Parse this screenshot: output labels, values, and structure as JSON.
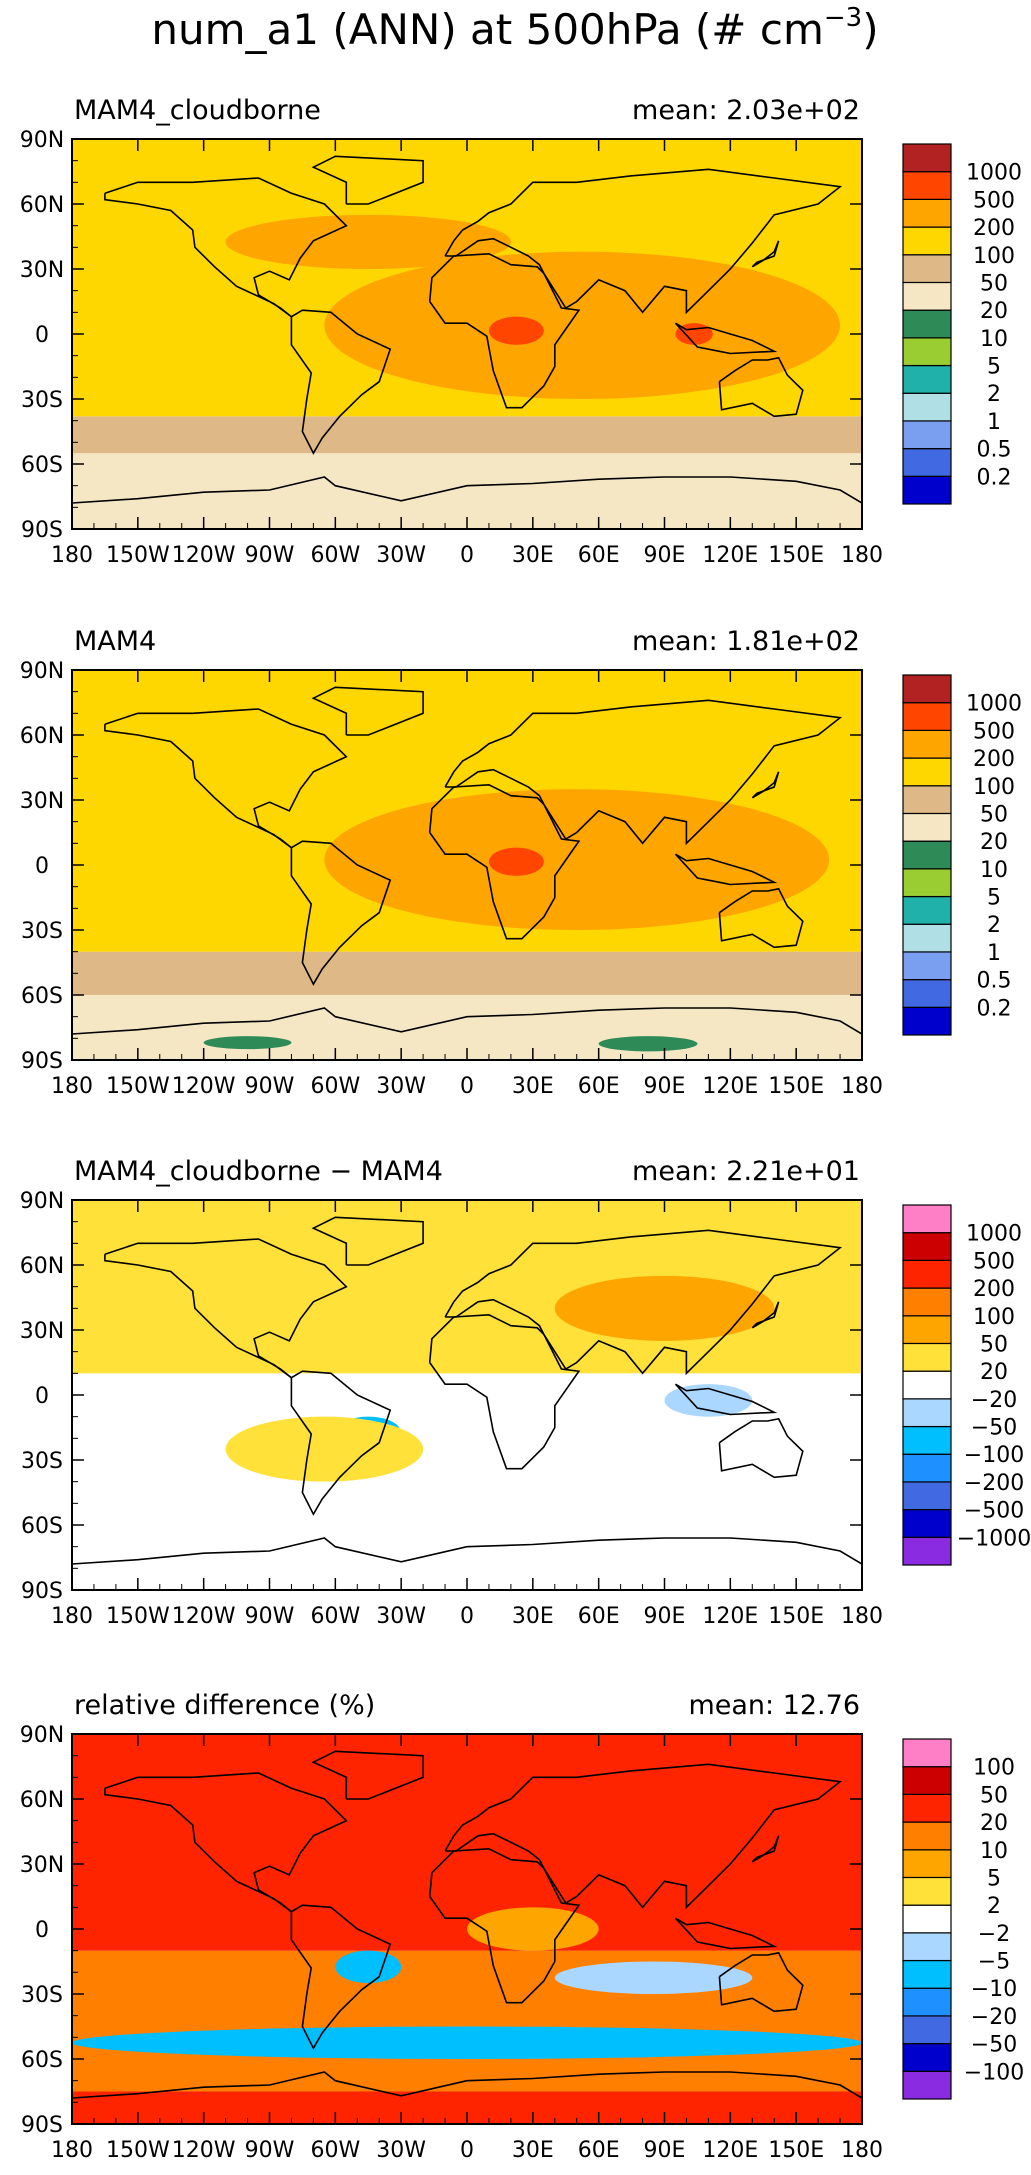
{
  "figure": {
    "title_main": "num_a1 (ANN) at 500hPa (# cm",
    "title_exp": "−3",
    "title_close": ")"
  },
  "colors": {
    "abs_scale": [
      "#0000cd",
      "#4169e1",
      "#7b9ff0",
      "#b0e0e6",
      "#20b2aa",
      "#9acd32",
      "#2e8b57",
      "#f5e6c4",
      "#deb887",
      "#ffd700",
      "#ffa500",
      "#ff4500",
      "#b22222"
    ],
    "diff_scale": [
      "#8a2be2",
      "#0000cd",
      "#4169e1",
      "#1e90ff",
      "#00bfff",
      "#aad7ff",
      "#ffffff",
      "#ffe13a",
      "#ffa500",
      "#ff7f00",
      "#ff2400",
      "#cc0000",
      "#ff7fc7"
    ],
    "land_line": "#000000"
  },
  "chart_data": [
    {
      "type": "heatmap",
      "title": "MAM4_cloudborne",
      "mean_label": "mean: 2.03e+02",
      "xlabels": [
        "180",
        "150W",
        "120W",
        "90W",
        "60W",
        "30W",
        "0",
        "30E",
        "60E",
        "90E",
        "120E",
        "150E",
        "180"
      ],
      "ylabels": [
        "90N",
        "60N",
        "30N",
        "0",
        "30S",
        "60S",
        "90S"
      ],
      "xlim": [
        -180,
        180
      ],
      "ylim": [
        -90,
        90
      ],
      "colorbar": {
        "levels": [
          "0.2",
          "0.5",
          "1",
          "2",
          "5",
          "10",
          "20",
          "50",
          "100",
          "200",
          "500",
          "1000"
        ],
        "palette": "abs_scale"
      },
      "bands": [
        {
          "lat": [
            -90,
            -55
          ],
          "color_index": 7
        },
        {
          "lat": [
            -55,
            -38
          ],
          "color_index": 8
        },
        {
          "lat": [
            -38,
            90
          ],
          "color_index": 9
        }
      ],
      "regions": [
        {
          "lon": [
            -65,
            170
          ],
          "lat": [
            -30,
            38
          ],
          "color_index": 10
        },
        {
          "lon": [
            -110,
            20
          ],
          "lat": [
            30,
            55
          ],
          "color_index": 10
        },
        {
          "lon": [
            10,
            35
          ],
          "lat": [
            -5,
            8
          ],
          "color_index": 11
        },
        {
          "lon": [
            95,
            112
          ],
          "lat": [
            -5,
            5
          ],
          "color_index": 11
        }
      ]
    },
    {
      "type": "heatmap",
      "title": "MAM4",
      "mean_label": "mean: 1.81e+02",
      "xlabels": [
        "180",
        "150W",
        "120W",
        "90W",
        "60W",
        "30W",
        "0",
        "30E",
        "60E",
        "90E",
        "120E",
        "150E",
        "180"
      ],
      "ylabels": [
        "90N",
        "60N",
        "30N",
        "0",
        "30S",
        "60S",
        "90S"
      ],
      "xlim": [
        -180,
        180
      ],
      "ylim": [
        -90,
        90
      ],
      "colorbar": {
        "levels": [
          "0.2",
          "0.5",
          "1",
          "2",
          "5",
          "10",
          "20",
          "50",
          "100",
          "200",
          "500",
          "1000"
        ],
        "palette": "abs_scale"
      },
      "bands": [
        {
          "lat": [
            -90,
            -60
          ],
          "color_index": 7
        },
        {
          "lat": [
            -60,
            -40
          ],
          "color_index": 8
        },
        {
          "lat": [
            -40,
            90
          ],
          "color_index": 9
        }
      ],
      "regions": [
        {
          "lon": [
            -65,
            165
          ],
          "lat": [
            -30,
            35
          ],
          "color_index": 10
        },
        {
          "lon": [
            -120,
            -80
          ],
          "lat": [
            -85,
            -79
          ],
          "color_index": 6
        },
        {
          "lon": [
            60,
            105
          ],
          "lat": [
            -86,
            -79
          ],
          "color_index": 6
        },
        {
          "lon": [
            10,
            35
          ],
          "lat": [
            -5,
            8
          ],
          "color_index": 11
        }
      ]
    },
    {
      "type": "heatmap",
      "title": "MAM4_cloudborne − MAM4",
      "mean_label": "mean: 2.21e+01",
      "xlabels": [
        "180",
        "150W",
        "120W",
        "90W",
        "60W",
        "30W",
        "0",
        "30E",
        "60E",
        "90E",
        "120E",
        "150E",
        "180"
      ],
      "ylabels": [
        "90N",
        "60N",
        "30N",
        "0",
        "30S",
        "60S",
        "90S"
      ],
      "xlim": [
        -180,
        180
      ],
      "ylim": [
        -90,
        90
      ],
      "colorbar": {
        "levels": [
          "−1000",
          "−500",
          "−200",
          "−100",
          "−50",
          "−20",
          "20",
          "50",
          "100",
          "200",
          "500",
          "1000"
        ],
        "palette": "diff_scale"
      },
      "bands": [
        {
          "lat": [
            -90,
            -40
          ],
          "color_index": 6
        },
        {
          "lat": [
            -40,
            10
          ],
          "color_index": 6
        },
        {
          "lat": [
            10,
            90
          ],
          "color_index": 7
        }
      ],
      "regions": [
        {
          "lon": [
            40,
            140
          ],
          "lat": [
            25,
            55
          ],
          "color_index": 8
        },
        {
          "lon": [
            -60,
            -30
          ],
          "lat": [
            -25,
            -10
          ],
          "color_index": 4
        },
        {
          "lon": [
            90,
            130
          ],
          "lat": [
            -10,
            5
          ],
          "color_index": 5
        },
        {
          "lon": [
            -110,
            -20
          ],
          "lat": [
            -40,
            -10
          ],
          "color_index": 7
        }
      ]
    },
    {
      "type": "heatmap",
      "title": "relative difference (%)",
      "mean_label": "mean: 12.76",
      "xlabels": [
        "180",
        "150W",
        "120W",
        "90W",
        "60W",
        "30W",
        "0",
        "30E",
        "60E",
        "90E",
        "120E",
        "150E",
        "180"
      ],
      "ylabels": [
        "90N",
        "60N",
        "30N",
        "0",
        "30S",
        "60S",
        "90S"
      ],
      "xlim": [
        -180,
        180
      ],
      "ylim": [
        -90,
        90
      ],
      "colorbar": {
        "levels": [
          "−100",
          "−50",
          "−20",
          "−10",
          "−5",
          "−2",
          "2",
          "5",
          "10",
          "20",
          "50",
          "100"
        ],
        "palette": "diff_scale"
      },
      "bands": [
        {
          "lat": [
            -90,
            -75
          ],
          "color_index": 10
        },
        {
          "lat": [
            -75,
            -10
          ],
          "color_index": 9
        },
        {
          "lat": [
            -10,
            90
          ],
          "color_index": 10
        }
      ],
      "regions": [
        {
          "lon": [
            -180,
            180
          ],
          "lat": [
            -60,
            -45
          ],
          "color_index": 4
        },
        {
          "lon": [
            -60,
            -30
          ],
          "lat": [
            -25,
            -10
          ],
          "color_index": 4
        },
        {
          "lon": [
            40,
            130
          ],
          "lat": [
            -30,
            -15
          ],
          "color_index": 5
        },
        {
          "lon": [
            0,
            60
          ],
          "lat": [
            -10,
            10
          ],
          "color_index": 8
        }
      ]
    }
  ]
}
